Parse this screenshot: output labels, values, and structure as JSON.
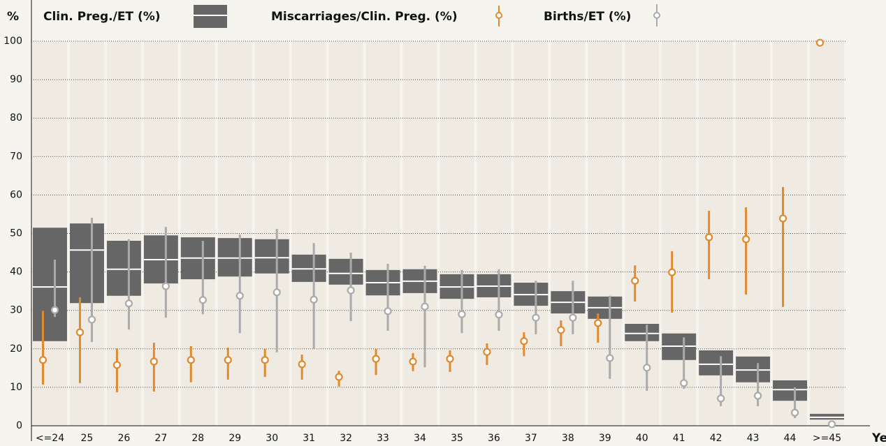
{
  "chart_data": {
    "type": "range_box",
    "y_label": "%",
    "x_label": "Years",
    "categories": [
      "<=24",
      "25",
      "26",
      "27",
      "28",
      "29",
      "30",
      "31",
      "32",
      "33",
      "34",
      "35",
      "36",
      "37",
      "38",
      "39",
      "40",
      "41",
      "42",
      "43",
      "44",
      ">=45"
    ],
    "ylim": [
      0,
      100
    ],
    "yticks": [
      0,
      10,
      20,
      30,
      40,
      50,
      60,
      70,
      80,
      90,
      100
    ],
    "grid": true,
    "series": [
      {
        "name": "Clin. Preg./ET (%)",
        "color": "#666666",
        "values": [
          36.1,
          45.7,
          40.7,
          43.2,
          43.6,
          43.6,
          43.7,
          40.8,
          39.6,
          37.2,
          37.6,
          36.1,
          36.3,
          34.1,
          32.1,
          30.7,
          24.0,
          20.7,
          16.0,
          14.5,
          9.4,
          2.2
        ],
        "lows": [
          22.0,
          31.9,
          33.8,
          37.0,
          38.1,
          38.8,
          39.6,
          37.4,
          36.7,
          33.9,
          34.5,
          33.0,
          33.4,
          31.2,
          29.2,
          27.8,
          22.0,
          17.1,
          13.1,
          11.3,
          6.5,
          1.6
        ],
        "highs": [
          51.5,
          52.6,
          48.1,
          49.5,
          49.0,
          48.8,
          48.5,
          44.5,
          43.4,
          40.5,
          40.7,
          39.4,
          39.4,
          37.2,
          35.0,
          33.6,
          26.5,
          24.0,
          19.6,
          18.0,
          11.8,
          3.1
        ]
      },
      {
        "name": "Miscarriages/Clin. Preg. (%)",
        "color": "#e08a2e",
        "values": [
          17.1,
          24.3,
          15.8,
          16.7,
          17.1,
          17.1,
          17.1,
          16.0,
          12.7,
          17.4,
          16.7,
          17.4,
          19.2,
          22.0,
          24.9,
          26.7,
          37.7,
          39.9,
          49.0,
          48.5,
          53.9,
          99.6
        ],
        "lows": [
          10.7,
          11.1,
          8.7,
          8.9,
          11.3,
          12.0,
          12.7,
          12.0,
          10.2,
          13.2,
          14.2,
          14.0,
          15.8,
          18.1,
          20.7,
          21.6,
          32.3,
          29.4,
          38.1,
          34.1,
          30.9,
          null
        ],
        "highs": [
          29.9,
          33.4,
          20.1,
          21.6,
          20.7,
          20.3,
          20.0,
          18.5,
          14.3,
          20.0,
          18.9,
          19.6,
          21.4,
          24.3,
          27.4,
          29.2,
          41.7,
          45.4,
          55.9,
          56.8,
          62.1,
          null
        ]
      },
      {
        "name": "Births/ET (%)",
        "color": "#aaaaaa",
        "values": [
          30.1,
          27.6,
          31.8,
          36.3,
          32.7,
          33.8,
          34.7,
          32.8,
          35.2,
          29.8,
          31.0,
          29.0,
          28.9,
          28.1,
          28.1,
          17.6,
          15.1,
          11.1,
          7.1,
          7.8,
          3.4,
          0.4
        ],
        "lows": [
          28.3,
          21.8,
          25.0,
          28.1,
          29.0,
          24.1,
          19.1,
          20.0,
          27.2,
          24.7,
          15.2,
          24.1,
          24.7,
          23.8,
          23.8,
          12.2,
          9.1,
          9.6,
          5.1,
          5.1,
          2.0,
          null
        ],
        "highs": [
          43.2,
          54.1,
          48.5,
          51.7,
          48.1,
          49.7,
          51.2,
          47.5,
          45.0,
          42.1,
          41.6,
          40.5,
          40.7,
          37.7,
          37.7,
          33.8,
          26.3,
          23.0,
          18.1,
          16.3,
          10.0,
          null
        ]
      }
    ]
  }
}
